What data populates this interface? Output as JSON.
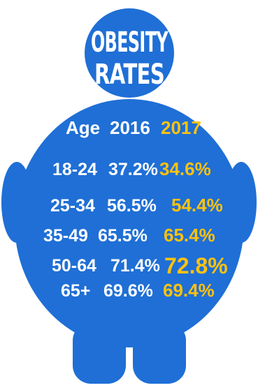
{
  "title": {
    "line1": "OBESITY",
    "line2": "RATES"
  },
  "colors": {
    "body": "#1f6fd6",
    "background": "#ffffff",
    "text": "#ffffff",
    "highlight": "#ffc20e"
  },
  "chart_data": {
    "type": "table",
    "columns": [
      "Age",
      "2016",
      "2017"
    ],
    "rows": [
      {
        "age": "18-24",
        "y2016": "37.2%",
        "y2017": "34.6%"
      },
      {
        "age": "25-34",
        "y2016": "56.5%",
        "y2017": "54.4%"
      },
      {
        "age": "35-49",
        "y2016": "65.5%",
        "y2017": "65.4%"
      },
      {
        "age": "50-64",
        "y2016": "71.4%",
        "y2017": "72.8%"
      },
      {
        "age": "65+",
        "y2016": "69.6%",
        "y2017": "69.4%"
      }
    ],
    "emphasized_2017_row": "50-64"
  }
}
